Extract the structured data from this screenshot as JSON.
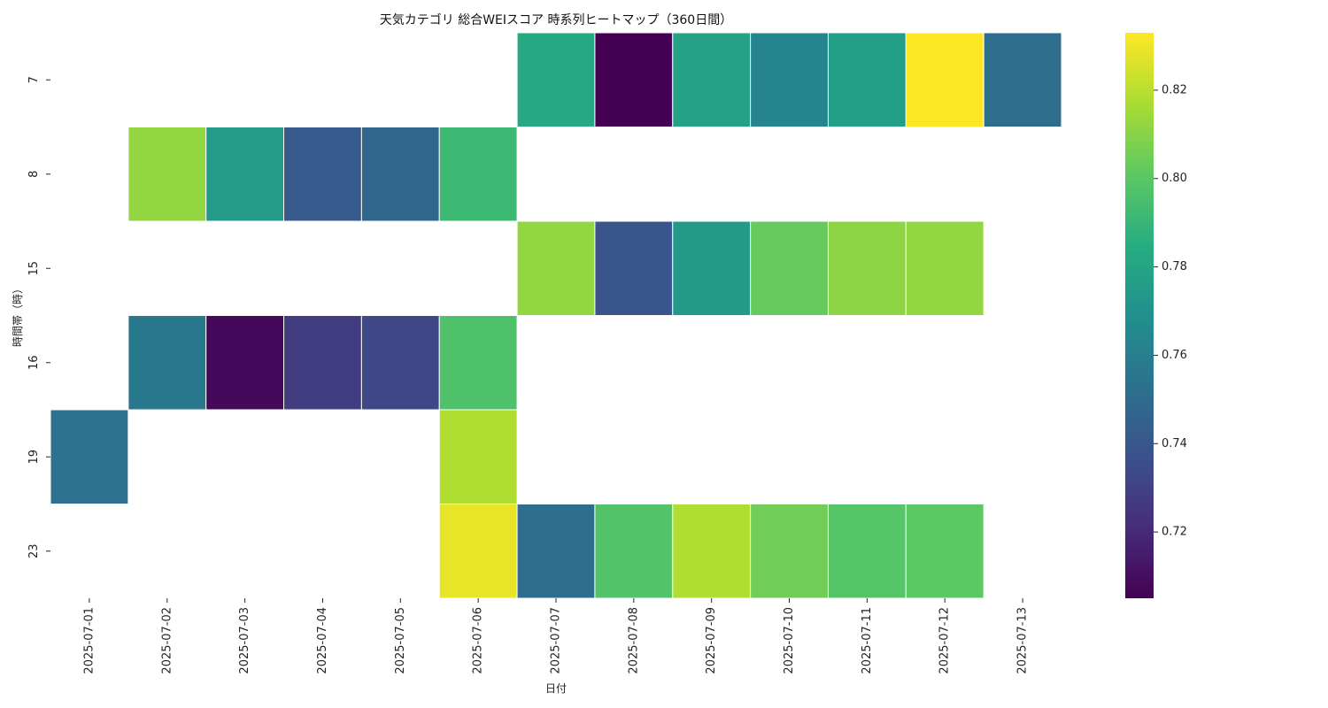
{
  "chart_data": {
    "type": "heatmap",
    "title": "天気カテゴリ 総合WEIスコア 時系列ヒートマップ（360日間）",
    "xlabel": "日付",
    "ylabel": "時間帯（時）",
    "x": [
      "2025-07-01",
      "2025-07-02",
      "2025-07-03",
      "2025-07-04",
      "2025-07-05",
      "2025-07-06",
      "2025-07-07",
      "2025-07-08",
      "2025-07-09",
      "2025-07-10",
      "2025-07-11",
      "2025-07-12",
      "2025-07-13"
    ],
    "y": [
      "7",
      "8",
      "15",
      "16",
      "19",
      "23"
    ],
    "values": [
      [
        null,
        null,
        null,
        null,
        null,
        null,
        0.783,
        0.705,
        0.779,
        0.763,
        0.777,
        0.833,
        0.751
      ],
      [
        null,
        0.812,
        0.775,
        0.742,
        0.748,
        0.792,
        null,
        null,
        null,
        null,
        null,
        null,
        null
      ],
      [
        null,
        null,
        null,
        null,
        null,
        null,
        0.812,
        0.739,
        0.774,
        0.803,
        0.811,
        0.812,
        null
      ],
      [
        null,
        0.757,
        0.708,
        0.728,
        0.733,
        0.797,
        null,
        null,
        null,
        null,
        null,
        null,
        null
      ],
      [
        0.753,
        null,
        null,
        null,
        null,
        0.818,
        null,
        null,
        null,
        null,
        null,
        null,
        null
      ],
      [
        null,
        null,
        null,
        null,
        null,
        0.829,
        0.751,
        0.798,
        0.818,
        0.805,
        0.799,
        0.801,
        null
      ]
    ],
    "colormap": "viridis",
    "vmin": 0.705,
    "vmax": 0.833,
    "colorbar_ticks": [
      "0.72",
      "0.74",
      "0.76",
      "0.78",
      "0.80",
      "0.82"
    ],
    "grid": false,
    "cell_border_color": "#ffffff"
  }
}
